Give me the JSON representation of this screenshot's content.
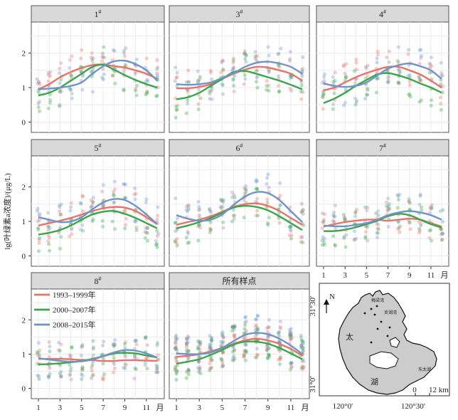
{
  "figure": {
    "ylabel": "lg(叶绿素a浓度)/(μg/L)"
  },
  "colors": {
    "1993-1999": "#e8736a",
    "2000-2007": "#3aa64a",
    "2008-2015": "#6f95c8",
    "header_bg": "#d9d9d9",
    "panel_border": "#555555",
    "grid": "#ececec"
  },
  "chart_data": {
    "type": "scatter",
    "x": [
      1,
      2,
      3,
      4,
      5,
      6,
      7,
      8,
      9,
      10,
      11,
      12
    ],
    "x_ticks": [
      "1",
      "3",
      "5",
      "7",
      "9",
      "11"
    ],
    "x_unit": "月",
    "ylim": [
      -0.3,
      2.9
    ],
    "y_ticks": [
      "0",
      "1",
      "2"
    ],
    "grid": true,
    "legend": {
      "placement": "inside panel 8#, top-left",
      "entries": [
        "1993–1999年",
        "2000–2007年",
        "2008–2015年"
      ]
    },
    "panels": [
      {
        "title": "1",
        "sup": "#",
        "show_x": false,
        "series": [
          {
            "name": "1993–1999年",
            "values": [
              0.95,
              1.1,
              1.3,
              1.45,
              1.57,
              1.65,
              1.67,
              1.62,
              1.58,
              1.5,
              1.4,
              1.25
            ]
          },
          {
            "name": "2000–2007年",
            "values": [
              0.77,
              0.85,
              1.0,
              1.2,
              1.4,
              1.6,
              1.66,
              1.52,
              1.36,
              1.22,
              1.1,
              1.0
            ]
          },
          {
            "name": "2008–2015年",
            "values": [
              0.95,
              0.97,
              1.0,
              1.05,
              1.15,
              1.4,
              1.62,
              1.76,
              1.78,
              1.68,
              1.5,
              1.2
            ]
          }
        ]
      },
      {
        "title": "3",
        "sup": "#",
        "show_x": false,
        "series": [
          {
            "name": "1993–1999年",
            "values": [
              0.98,
              0.98,
              1.02,
              1.1,
              1.25,
              1.4,
              1.52,
              1.6,
              1.58,
              1.5,
              1.4,
              1.2
            ]
          },
          {
            "name": "2000–2007年",
            "values": [
              0.66,
              0.72,
              0.85,
              1.05,
              1.25,
              1.45,
              1.48,
              1.4,
              1.3,
              1.2,
              1.08,
              0.95
            ]
          },
          {
            "name": "2008–2015年",
            "values": [
              1.1,
              1.08,
              1.1,
              1.15,
              1.28,
              1.42,
              1.6,
              1.72,
              1.75,
              1.7,
              1.6,
              1.4
            ]
          }
        ]
      },
      {
        "title": "4",
        "sup": "#",
        "show_x": false,
        "series": [
          {
            "name": "1993–1999年",
            "values": [
              0.92,
              1.0,
              1.15,
              1.3,
              1.42,
              1.52,
              1.6,
              1.6,
              1.5,
              1.38,
              1.2,
              1.0
            ]
          },
          {
            "name": "2000–2007年",
            "values": [
              0.55,
              0.68,
              0.85,
              1.05,
              1.22,
              1.38,
              1.42,
              1.35,
              1.25,
              1.12,
              1.0,
              0.85
            ]
          },
          {
            "name": "2008–2015年",
            "values": [
              1.12,
              1.05,
              1.02,
              1.05,
              1.15,
              1.35,
              1.55,
              1.65,
              1.7,
              1.62,
              1.5,
              1.25
            ]
          }
        ]
      },
      {
        "title": "5",
        "sup": "#",
        "show_x": false,
        "series": [
          {
            "name": "1993–1999年",
            "values": [
              0.88,
              0.95,
              1.02,
              1.1,
              1.2,
              1.3,
              1.38,
              1.42,
              1.4,
              1.3,
              1.12,
              0.92
            ]
          },
          {
            "name": "2000–2007年",
            "values": [
              0.62,
              0.67,
              0.75,
              0.88,
              1.05,
              1.2,
              1.28,
              1.3,
              1.22,
              1.1,
              0.95,
              0.8
            ]
          },
          {
            "name": "2008–2015年",
            "values": [
              1.12,
              1.05,
              0.98,
              1.0,
              1.12,
              1.35,
              1.55,
              1.65,
              1.62,
              1.45,
              1.2,
              0.92
            ]
          }
        ]
      },
      {
        "title": "6",
        "sup": "#",
        "show_x": false,
        "series": [
          {
            "name": "1993–1999年",
            "values": [
              0.9,
              0.98,
              1.05,
              1.15,
              1.28,
              1.42,
              1.5,
              1.52,
              1.45,
              1.3,
              1.1,
              0.9
            ]
          },
          {
            "name": "2000–2007年",
            "values": [
              0.8,
              0.88,
              0.98,
              1.1,
              1.25,
              1.4,
              1.45,
              1.42,
              1.32,
              1.15,
              0.95,
              0.75
            ]
          },
          {
            "name": "2008–2015年",
            "values": [
              1.18,
              1.08,
              1.02,
              1.05,
              1.2,
              1.48,
              1.72,
              1.85,
              1.82,
              1.62,
              1.3,
              0.98
            ]
          }
        ]
      },
      {
        "title": "7",
        "sup": "#",
        "show_x": true,
        "series": [
          {
            "name": "1993–1999年",
            "values": [
              0.85,
              0.92,
              0.98,
              1.02,
              1.05,
              1.05,
              1.02,
              1.05,
              1.08,
              1.05,
              0.95,
              0.85
            ]
          },
          {
            "name": "2000–2007年",
            "values": [
              0.72,
              0.72,
              0.76,
              0.83,
              0.92,
              1.02,
              1.15,
              1.22,
              1.18,
              1.05,
              0.92,
              0.82
            ]
          },
          {
            "name": "2008–2015年",
            "values": [
              0.88,
              0.86,
              0.86,
              0.9,
              0.95,
              1.05,
              1.18,
              1.26,
              1.3,
              1.26,
              1.18,
              1.05
            ]
          }
        ]
      },
      {
        "title": "8",
        "sup": "#",
        "show_x": true,
        "series": [
          {
            "name": "1993–1999年",
            "values": [
              0.86,
              0.86,
              0.86,
              0.85,
              0.83,
              0.82,
              0.8,
              0.8,
              0.82,
              0.82,
              0.81,
              0.8
            ]
          },
          {
            "name": "2000–2007年",
            "values": [
              0.7,
              0.71,
              0.73,
              0.76,
              0.8,
              0.86,
              0.94,
              1.02,
              1.04,
              1.02,
              0.96,
              0.9
            ]
          },
          {
            "name": "2008–2015年",
            "values": [
              0.88,
              0.84,
              0.8,
              0.78,
              0.79,
              0.84,
              0.94,
              1.05,
              1.12,
              1.1,
              1.02,
              0.9
            ]
          }
        ]
      },
      {
        "title": "所有样点",
        "sup": "",
        "show_x": true,
        "series": [
          {
            "name": "1993–1999年",
            "values": [
              0.92,
              0.95,
              1.0,
              1.08,
              1.18,
              1.3,
              1.4,
              1.45,
              1.4,
              1.3,
              1.15,
              0.95
            ]
          },
          {
            "name": "2000–2007年",
            "values": [
              0.72,
              0.78,
              0.85,
              0.98,
              1.12,
              1.28,
              1.36,
              1.36,
              1.3,
              1.18,
              1.02,
              0.85
            ]
          },
          {
            "name": "2008–2015年",
            "values": [
              1.02,
              1.0,
              1.0,
              1.05,
              1.18,
              1.38,
              1.56,
              1.62,
              1.58,
              1.45,
              1.25,
              1.0
            ]
          }
        ]
      }
    ]
  },
  "map": {
    "north": "N",
    "lat_top": "31°30′",
    "lat_bottom": "31°0′",
    "lon_left": "120°0′",
    "lon_right": "120°30′",
    "scale_zero": "0",
    "scale_label": "12 km",
    "lake_chars": [
      "太",
      "湖"
    ],
    "bay_labels": [
      "梅梁湾",
      "贡湖湾",
      "东太湖"
    ]
  }
}
